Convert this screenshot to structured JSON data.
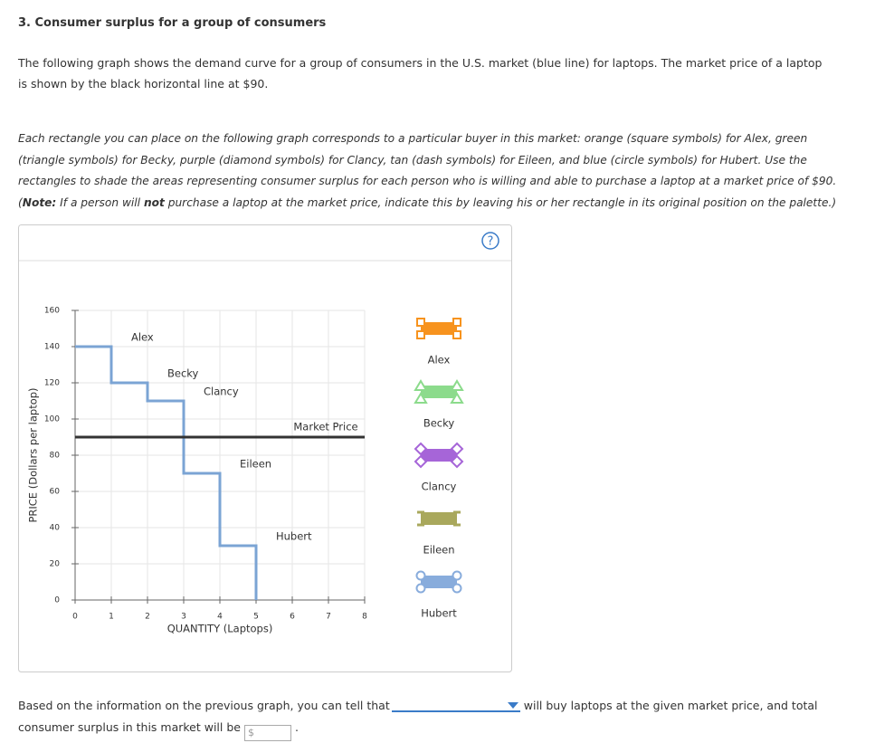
{
  "heading": "3. Consumer surplus for a group of consumers",
  "paragraph": "The following graph shows the demand curve for a group of consumers in the U.S. market (blue line) for laptops. The market price of a laptop is shown by the black horizontal line at $90.",
  "instructions": [
    "Each rectangle you can place on the following graph corresponds to a particular buyer in this market: orange (square symbols) for Alex, green (triangle symbols) for Becky, purple (diamond symbols) for Clancy, tan (dash symbols) for Eileen, and blue (circle symbols) for Hubert. Use the rectangles to shade the areas representing consumer surplus for each person who is willing and able to purchase a laptop at a market price of $90.",
    "(",
    "Note:",
    " If a person will ",
    "not",
    " purchase a laptop at the market price, indicate this by leaving his or her rectangle in its original position on the palette.)"
  ],
  "help": "?",
  "chart_data": {
    "type": "line",
    "x": [
      0,
      1,
      1,
      2,
      2,
      3,
      3,
      4,
      4,
      5,
      5
    ],
    "values": [
      140,
      140,
      120,
      120,
      110,
      110,
      70,
      70,
      30,
      30,
      0
    ],
    "color": "#7ba4d4",
    "step_labels": [
      "Alex",
      "Becky",
      "Clancy",
      "Eileen",
      "Hubert"
    ],
    "market_price": {
      "value": 90,
      "label": "Market Price",
      "color": "#333333"
    },
    "xlabel": "QUANTITY (Laptops)",
    "ylabel": "PRICE (Dollars per laptop)",
    "xlim": [
      0,
      8
    ],
    "xticks": [
      0,
      1,
      2,
      3,
      4,
      5,
      6,
      7,
      8
    ],
    "ylim": [
      0,
      160
    ],
    "yticks": [
      0,
      20,
      40,
      60,
      80,
      100,
      120,
      140,
      160
    ],
    "grid": true
  },
  "palette": [
    {
      "name": "Alex",
      "color": "#f7931e",
      "symbol": "square"
    },
    {
      "name": "Becky",
      "color": "#8cdb8c",
      "symbol": "triangle"
    },
    {
      "name": "Clancy",
      "color": "#a665d8",
      "symbol": "diamond"
    },
    {
      "name": "Eileen",
      "color": "#a9a85c",
      "symbol": "dash"
    },
    {
      "name": "Hubert",
      "color": "#88acdc",
      "symbol": "circle"
    }
  ],
  "question": {
    "before": "Based on the information on the previous graph, you can tell that",
    "after": "will buy laptops at the given market price, and total consumer surplus in this market will be",
    "currency": "$",
    "end": "."
  }
}
